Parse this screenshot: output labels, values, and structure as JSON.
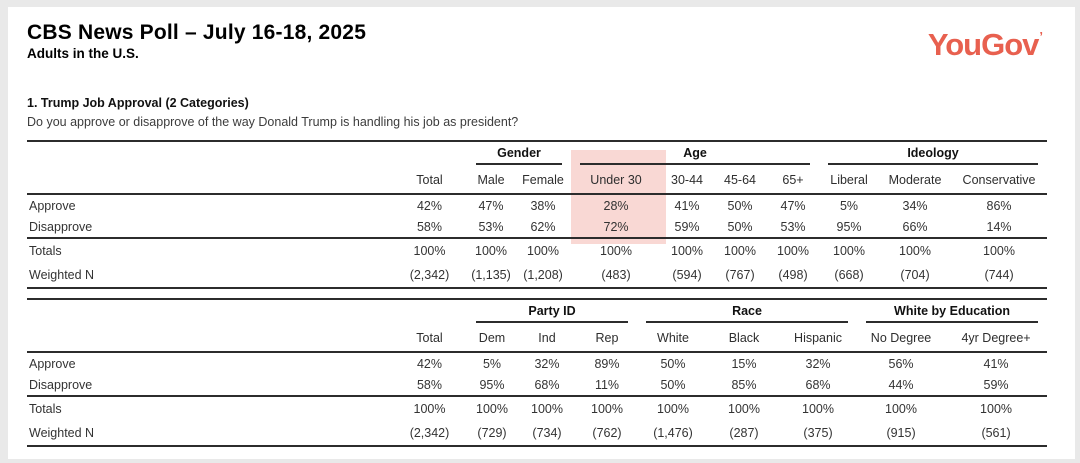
{
  "header": {
    "title": "CBS News Poll – July 16-18, 2025",
    "subtitle": "Adults in the U.S.",
    "logo_text": "YouGov",
    "logo_mark": "’"
  },
  "section": {
    "title": "1. Trump Job Approval (2 Categories)",
    "question": "Do you approve or disapprove of the way Donald Trump is handling his job as president?"
  },
  "colors": {
    "logo": "#E8604F",
    "highlight": "#F9D8D4",
    "rule": "#2C2C2C",
    "text": "#333333"
  },
  "tables": [
    {
      "groups": [
        {
          "label": "Gender",
          "span": 2
        },
        {
          "label": "Age",
          "span": 4
        },
        {
          "label": "Ideology",
          "span": 3
        }
      ],
      "columns": [
        "Total",
        "Male",
        "Female",
        "Under 30",
        "30-44",
        "45-64",
        "65+",
        "Liberal",
        "Moderate",
        "Conservative"
      ],
      "rows": [
        {
          "label": "Approve",
          "values": [
            "42%",
            "47%",
            "38%",
            "28%",
            "41%",
            "50%",
            "47%",
            "5%",
            "34%",
            "86%"
          ]
        },
        {
          "label": "Disapprove",
          "values": [
            "58%",
            "53%",
            "62%",
            "72%",
            "59%",
            "50%",
            "53%",
            "95%",
            "66%",
            "14%"
          ]
        }
      ],
      "totals": [
        {
          "label": "Totals",
          "values": [
            "100%",
            "100%",
            "100%",
            "100%",
            "100%",
            "100%",
            "100%",
            "100%",
            "100%",
            "100%"
          ]
        },
        {
          "label": "Weighted N",
          "values": [
            "(2,342)",
            "(1,135)",
            "(1,208)",
            "(483)",
            "(594)",
            "(767)",
            "(498)",
            "(668)",
            "(704)",
            "(744)"
          ]
        }
      ],
      "highlighted_column": "Under 30"
    },
    {
      "groups": [
        {
          "label": "Party ID",
          "span": 3
        },
        {
          "label": "Race",
          "span": 3
        },
        {
          "label": "White by Education",
          "span": 2
        }
      ],
      "columns": [
        "Total",
        "Dem",
        "Ind",
        "Rep",
        "White",
        "Black",
        "Hispanic",
        "No Degree",
        "4yr Degree+"
      ],
      "rows": [
        {
          "label": "Approve",
          "values": [
            "42%",
            "5%",
            "32%",
            "89%",
            "50%",
            "15%",
            "32%",
            "56%",
            "41%"
          ]
        },
        {
          "label": "Disapprove",
          "values": [
            "58%",
            "95%",
            "68%",
            "11%",
            "50%",
            "85%",
            "68%",
            "44%",
            "59%"
          ]
        }
      ],
      "totals": [
        {
          "label": "Totals",
          "values": [
            "100%",
            "100%",
            "100%",
            "100%",
            "100%",
            "100%",
            "100%",
            "100%",
            "100%"
          ]
        },
        {
          "label": "Weighted N",
          "values": [
            "(2,342)",
            "(729)",
            "(734)",
            "(762)",
            "(1,476)",
            "(287)",
            "(375)",
            "(915)",
            "(561)"
          ]
        }
      ],
      "highlighted_column": null
    }
  ]
}
